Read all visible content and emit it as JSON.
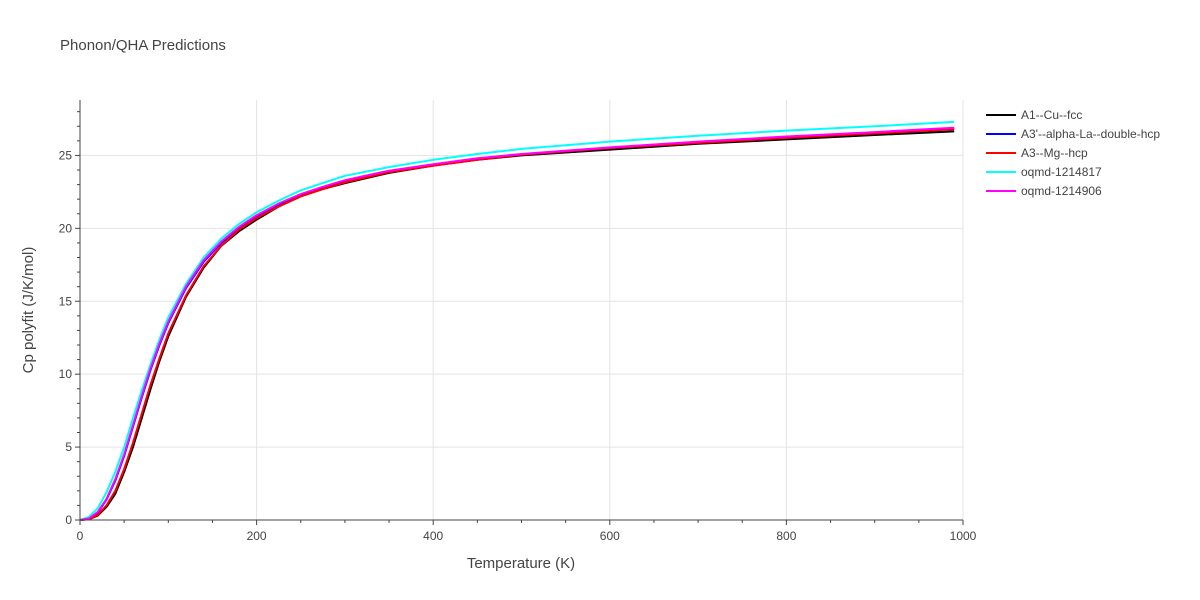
{
  "chart_data": {
    "type": "line",
    "title": "Phonon/QHA Predictions",
    "xlabel": "Temperature (K)",
    "ylabel": "Cp polyfit (J/K/mol)",
    "xlim": [
      0,
      1000
    ],
    "ylim": [
      0,
      28.8
    ],
    "x_ticks": [
      0,
      200,
      400,
      600,
      800,
      1000
    ],
    "y_ticks": [
      0,
      5,
      10,
      15,
      20,
      25
    ],
    "grid": true,
    "legend_position": "right",
    "x": [
      0,
      10,
      20,
      30,
      40,
      50,
      60,
      70,
      80,
      90,
      100,
      120,
      140,
      160,
      180,
      200,
      225,
      250,
      275,
      300,
      350,
      400,
      450,
      500,
      600,
      700,
      800,
      900,
      990
    ],
    "series": [
      {
        "name": "A1--Cu--fcc",
        "color": "#000000",
        "values": [
          0,
          0.05,
          0.3,
          0.9,
          1.8,
          3.3,
          5.0,
          7.0,
          9.0,
          10.9,
          12.6,
          15.3,
          17.3,
          18.8,
          19.8,
          20.6,
          21.5,
          22.2,
          22.7,
          23.1,
          23.8,
          24.3,
          24.7,
          25.0,
          25.4,
          25.8,
          26.1,
          26.4,
          26.65
        ]
      },
      {
        "name": "A3'--alpha-La--double-hcp",
        "color": "#0000ff",
        "values": [
          0,
          0.1,
          0.5,
          1.4,
          2.7,
          4.4,
          6.4,
          8.4,
          10.3,
          12.0,
          13.5,
          15.9,
          17.7,
          19.0,
          20.0,
          20.8,
          21.6,
          22.3,
          22.8,
          23.2,
          23.9,
          24.35,
          24.75,
          25.05,
          25.5,
          25.9,
          26.2,
          26.55,
          26.85
        ]
      },
      {
        "name": "A3--Mg--hcp",
        "color": "#ff0000",
        "values": [
          0,
          0.05,
          0.35,
          1.0,
          2.0,
          3.5,
          5.3,
          7.3,
          9.3,
          11.1,
          12.8,
          15.4,
          17.4,
          18.8,
          19.9,
          20.7,
          21.5,
          22.2,
          22.7,
          23.15,
          23.85,
          24.3,
          24.7,
          25.05,
          25.5,
          25.85,
          26.2,
          26.5,
          26.8
        ]
      },
      {
        "name": "oqmd-1214817",
        "color": "#00ffff",
        "values": [
          0,
          0.2,
          0.8,
          1.9,
          3.3,
          5.0,
          7.0,
          8.9,
          10.7,
          12.4,
          13.9,
          16.2,
          18.0,
          19.3,
          20.3,
          21.1,
          21.9,
          22.6,
          23.1,
          23.6,
          24.2,
          24.7,
          25.1,
          25.45,
          25.95,
          26.35,
          26.7,
          27.0,
          27.3
        ]
      },
      {
        "name": "oqmd-1214906",
        "color": "#ff00ff",
        "values": [
          0,
          0.1,
          0.55,
          1.45,
          2.8,
          4.5,
          6.5,
          8.5,
          10.4,
          12.1,
          13.6,
          16.0,
          17.8,
          19.1,
          20.1,
          20.9,
          21.7,
          22.35,
          22.85,
          23.3,
          23.95,
          24.4,
          24.8,
          25.1,
          25.55,
          25.95,
          26.3,
          26.6,
          26.9
        ]
      }
    ]
  }
}
